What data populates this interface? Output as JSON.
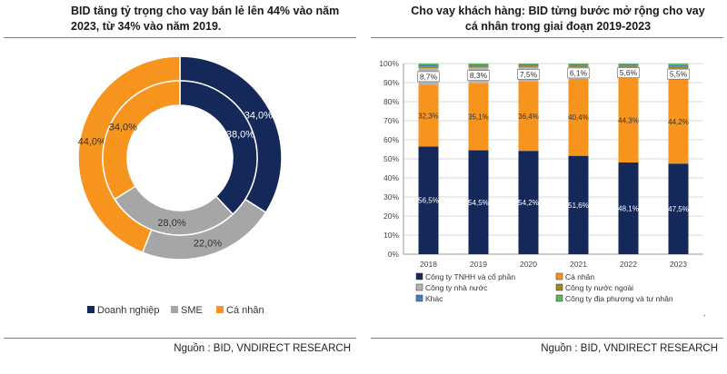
{
  "left": {
    "title": "BID tăng tỷ trọng cho vay bán lẻ lên 44% vào năm 2023, từ 34% vào năm 2019.",
    "source": "Nguồn : BID, VNDIRECT RESEARCH",
    "legend": [
      "Doanh nghiệp",
      "SME",
      "Cá nhân"
    ]
  },
  "right": {
    "title": "Cho vay khách hàng: BID từng bước mở rộng cho vay cá nhân trong giai đoạn 2019-2023",
    "source": "Nguồn : BID, VNDIRECT RESEARCH",
    "footnote": "`"
  },
  "chart_data": [
    {
      "type": "pie",
      "subtype": "nested-donut",
      "categories": [
        "Doanh nghiệp",
        "SME",
        "Cá nhân"
      ],
      "colors": [
        "#14285a",
        "#a6a6a6",
        "#f7941d"
      ],
      "rings": [
        {
          "position": "outer",
          "values": [
            34.0,
            22.0,
            44.0
          ],
          "labels": [
            "34,0%",
            "22,0%",
            "44,0%"
          ]
        },
        {
          "position": "inner",
          "values": [
            38.0,
            28.0,
            34.0
          ],
          "labels": [
            "38,0%",
            "28,0%",
            "34,0%"
          ]
        }
      ],
      "legend_position": "bottom"
    },
    {
      "type": "bar",
      "subtype": "stacked-100",
      "categories": [
        "2018",
        "2019",
        "2020",
        "2021",
        "2022",
        "2023"
      ],
      "series": [
        {
          "name": "Công ty TNHH và cổ phần",
          "color": "#14285a",
          "values": [
            56.5,
            54.5,
            54.2,
            51.6,
            48.1,
            47.5
          ],
          "labels": [
            "56,5%",
            "54,5%",
            "54,2%",
            "51,6%",
            "48,1%",
            "47,5%"
          ]
        },
        {
          "name": "Cá nhân",
          "color": "#f7941d",
          "values": [
            32.3,
            35.1,
            36.4,
            40.4,
            44.3,
            44.2
          ],
          "labels": [
            "32,3%",
            "35,1%",
            "36,4%",
            "40,4%",
            "44,3%",
            "44,2%"
          ]
        },
        {
          "name": "Công ty nhà nước",
          "color": "#b3b3b3",
          "values": [
            8.7,
            8.3,
            7.5,
            6.1,
            5.6,
            5.5
          ],
          "labels": [
            "8,7%",
            "8,3%",
            "7,5%",
            "6,1%",
            "5,6%",
            "5,5%"
          ]
        },
        {
          "name": "Công ty nước ngoài",
          "color": "#9b8a1e",
          "values": [
            1.0,
            0.9,
            0.9,
            0.9,
            0.9,
            1.0
          ],
          "labels": [
            "",
            "",
            "",
            "",
            "",
            ""
          ]
        },
        {
          "name": "Khác",
          "color": "#4a7fbf",
          "values": [
            0.8,
            0.7,
            0.7,
            0.7,
            0.8,
            1.0
          ],
          "labels": [
            "",
            "",
            "",
            "",
            "",
            ""
          ]
        },
        {
          "name": "Công ty địa phương và tư nhân",
          "color": "#5cb85c",
          "values": [
            0.7,
            0.5,
            0.3,
            0.3,
            0.3,
            0.8
          ],
          "labels": [
            "",
            "",
            "",
            "",
            "",
            ""
          ]
        }
      ],
      "yticks": [
        "0%",
        "10%",
        "20%",
        "30%",
        "40%",
        "50%",
        "60%",
        "70%",
        "80%",
        "90%",
        "100%"
      ],
      "ylim": [
        0,
        100
      ],
      "grid": true,
      "legend_position": "bottom",
      "legend_order": [
        0,
        1,
        2,
        3,
        4,
        5
      ]
    }
  ]
}
